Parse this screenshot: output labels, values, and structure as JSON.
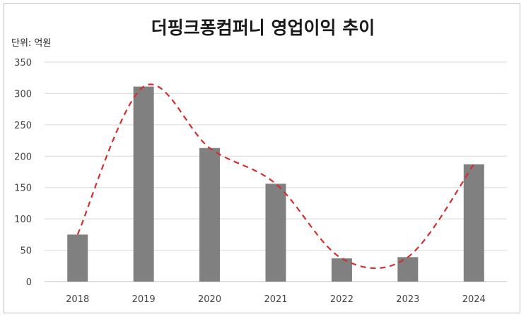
{
  "chart_data": {
    "type": "bar",
    "title": "더핑크퐁컴퍼니 영업이익 추이",
    "unit_label": "단위: 억원",
    "categories": [
      "2018",
      "2019",
      "2020",
      "2021",
      "2022",
      "2023",
      "2024"
    ],
    "series": [
      {
        "values": [
          75,
          311,
          213,
          156,
          37,
          39,
          187
        ],
        "color": "#808080"
      }
    ],
    "trendline": {
      "style": "dashed",
      "color": "#d32f2f",
      "values": [
        75,
        311,
        213,
        156,
        37,
        39,
        187
      ]
    },
    "ylim": [
      0,
      350
    ],
    "yticks": [
      0,
      50,
      100,
      150,
      200,
      250,
      300,
      350
    ],
    "grid": true,
    "legend": "none"
  }
}
